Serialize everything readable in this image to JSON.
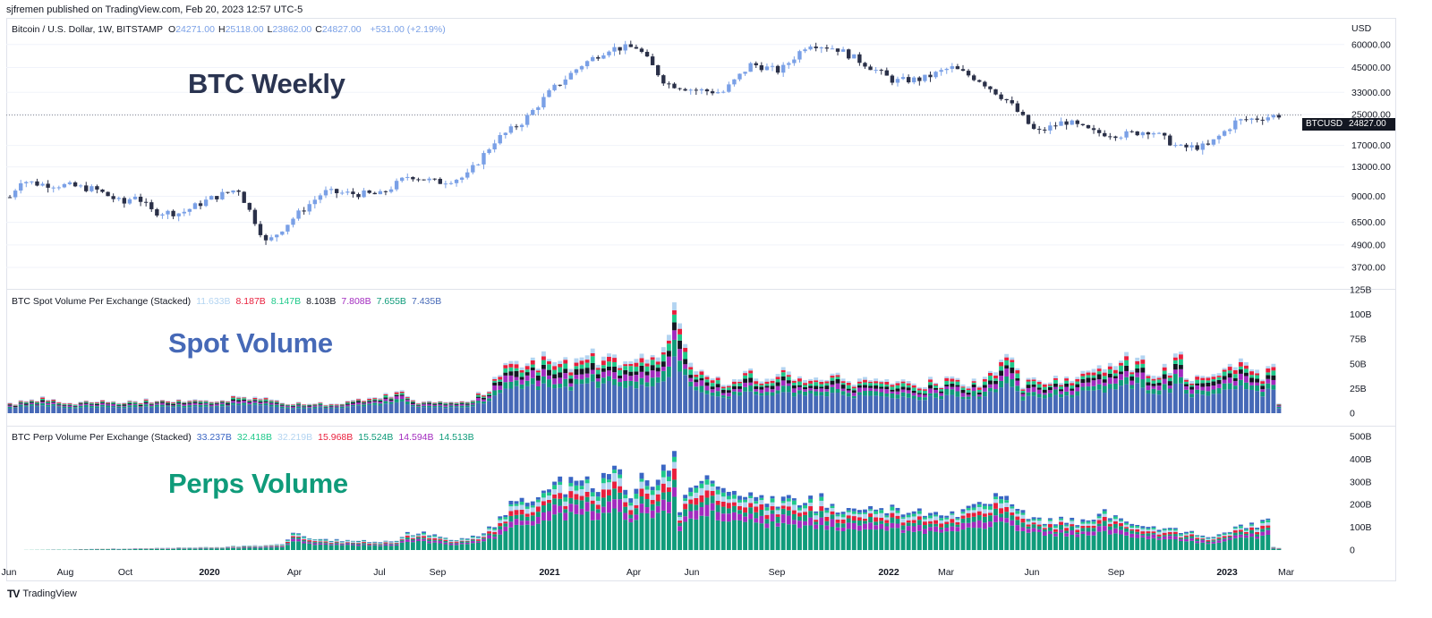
{
  "header": {
    "published": "sjfremen published on TradingView.com, Feb 20, 2023 12:57 UTC-5"
  },
  "price_pane": {
    "symbol": "Bitcoin / U.S. Dollar, 1W, BITSTAMP",
    "ohlc": [
      {
        "k": "O",
        "v": "24271.00"
      },
      {
        "k": "H",
        "v": "25118.00"
      },
      {
        "k": "L",
        "v": "23862.00"
      },
      {
        "k": "C",
        "v": "24827.00"
      }
    ],
    "change": "+531.00 (+2.19%)",
    "currency": "USD",
    "overlay_title": "BTC Weekly",
    "last_label_symbol": "BTCUSD",
    "last_label_value": "24827.00",
    "y_ticks": [
      "60000.00",
      "45000.00",
      "33000.00",
      "25000.00",
      "17000.00",
      "13000.00",
      "9000.00",
      "6500.00",
      "4900.00",
      "3700.00"
    ]
  },
  "spot_pane": {
    "title": "BTC Spot Volume Per Exchange (Stacked)",
    "values": [
      {
        "v": "11.633B",
        "color": "#b3d4f1"
      },
      {
        "v": "8.187B",
        "color": "#e91e3c"
      },
      {
        "v": "8.147B",
        "color": "#1ec98a"
      },
      {
        "v": "8.103B",
        "color": "#131722"
      },
      {
        "v": "7.808B",
        "color": "#a22bbf"
      },
      {
        "v": "7.655B",
        "color": "#0f9b7a"
      },
      {
        "v": "7.435B",
        "color": "#4669b7"
      }
    ],
    "overlay_title": "Spot Volume",
    "y_ticks": [
      "125B",
      "100B",
      "75B",
      "50B",
      "25B",
      "0"
    ]
  },
  "perp_pane": {
    "title": "BTC Perp Volume Per Exchange (Stacked)",
    "values": [
      {
        "v": "33.237B",
        "color": "#3a66c4"
      },
      {
        "v": "32.418B",
        "color": "#1ec98a"
      },
      {
        "v": "32.219B",
        "color": "#b3d4f1"
      },
      {
        "v": "15.968B",
        "color": "#e91e3c"
      },
      {
        "v": "15.524B",
        "color": "#0f9b7a"
      },
      {
        "v": "14.594B",
        "color": "#a22bbf"
      },
      {
        "v": "14.513B",
        "color": "#0f9b7a"
      }
    ],
    "overlay_title": "Perps Volume",
    "y_ticks": [
      "500B",
      "400B",
      "300B",
      "200B",
      "100B",
      "0"
    ]
  },
  "x_axis": {
    "labels": [
      {
        "t": "Jun",
        "bold": false
      },
      {
        "t": "Aug",
        "bold": false
      },
      {
        "t": "Oct",
        "bold": false
      },
      {
        "t": "2020",
        "bold": true
      },
      {
        "t": "Apr",
        "bold": false
      },
      {
        "t": "Jul",
        "bold": false
      },
      {
        "t": "Sep",
        "bold": false
      },
      {
        "t": "2021",
        "bold": true
      },
      {
        "t": "Apr",
        "bold": false
      },
      {
        "t": "Jun",
        "bold": false
      },
      {
        "t": "Sep",
        "bold": false
      },
      {
        "t": "2022",
        "bold": true
      },
      {
        "t": "Mar",
        "bold": false
      },
      {
        "t": "Jun",
        "bold": false
      },
      {
        "t": "Sep",
        "bold": false
      },
      {
        "t": "2023",
        "bold": true
      },
      {
        "t": "Mar",
        "bold": false
      }
    ]
  },
  "footer": {
    "brand": "TradingView"
  },
  "colors": {
    "up": "#7aa0e6",
    "down": "#2a3048",
    "spot_title": "#4669b7",
    "perp_title": "#0f9b7a",
    "price_title": "#2a3451",
    "spot_stack": [
      "#4669b7",
      "#0f9b7a",
      "#a22bbf",
      "#131722",
      "#1ec98a",
      "#e91e3c",
      "#b3d4f1"
    ],
    "perp_stack": [
      "#0f9b7a",
      "#a22bbf",
      "#0f9b7a",
      "#e91e3c",
      "#b3d4f1",
      "#1ec98a",
      "#3a66c4"
    ]
  },
  "chart_data": [
    {
      "type": "candlestick",
      "title": "Bitcoin / U.S. Dollar, 1W, BITSTAMP",
      "scale": "log",
      "x_range": [
        "2019-06",
        "2023-02"
      ],
      "ylim": [
        3200,
        70000
      ],
      "close_path": [
        [
          "2019-06",
          8900
        ],
        [
          "2019-06",
          11000
        ],
        [
          "2019-07",
          10500
        ],
        [
          "2019-08",
          10300
        ],
        [
          "2019-09",
          9800
        ],
        [
          "2019-10",
          8200
        ],
        [
          "2019-10",
          9200
        ],
        [
          "2019-11",
          7400
        ],
        [
          "2019-12",
          7300
        ],
        [
          "2020-01",
          8700
        ],
        [
          "2020-02",
          9900
        ],
        [
          "2020-03",
          5000
        ],
        [
          "2020-04",
          7000
        ],
        [
          "2020-05",
          9500
        ],
        [
          "2020-06",
          9300
        ],
        [
          "2020-07",
          9200
        ],
        [
          "2020-08",
          11700
        ],
        [
          "2020-09",
          10700
        ],
        [
          "2020-10",
          11500
        ],
        [
          "2020-11",
          18000
        ],
        [
          "2020-12",
          23000
        ],
        [
          "2021-01",
          34000
        ],
        [
          "2021-02",
          46000
        ],
        [
          "2021-03",
          57000
        ],
        [
          "2021-04",
          58000
        ],
        [
          "2021-05",
          37000
        ],
        [
          "2021-06",
          34000
        ],
        [
          "2021-07",
          33000
        ],
        [
          "2021-08",
          47000
        ],
        [
          "2021-09",
          43000
        ],
        [
          "2021-10",
          61000
        ],
        [
          "2021-11",
          57000
        ],
        [
          "2021-12",
          47000
        ],
        [
          "2022-01",
          38000
        ],
        [
          "2022-02",
          39000
        ],
        [
          "2022-03",
          45000
        ],
        [
          "2022-04",
          38500
        ],
        [
          "2022-05",
          29500
        ],
        [
          "2022-06",
          19900
        ],
        [
          "2022-07",
          23000
        ],
        [
          "2022-08",
          20000
        ],
        [
          "2022-09",
          19400
        ],
        [
          "2022-10",
          20500
        ],
        [
          "2022-11",
          16500
        ],
        [
          "2022-12",
          16800
        ],
        [
          "2023-01",
          23000
        ],
        [
          "2023-02",
          24827
        ]
      ]
    },
    {
      "type": "bar",
      "stacked": true,
      "title": "BTC Spot Volume Per Exchange (Stacked)",
      "unit": "B",
      "ylim": [
        0,
        125
      ],
      "anchors": [
        [
          0,
          10
        ],
        [
          6,
          16
        ],
        [
          10,
          11
        ],
        [
          20,
          12
        ],
        [
          40,
          14
        ],
        [
          44,
          17
        ],
        [
          52,
          10
        ],
        [
          60,
          11
        ],
        [
          72,
          21
        ],
        [
          75,
          12
        ],
        [
          84,
          12
        ],
        [
          88,
          24
        ],
        [
          92,
          56
        ],
        [
          100,
          52
        ],
        [
          110,
          58
        ],
        [
          114,
          48
        ],
        [
          121,
          70
        ],
        [
          122,
          115
        ],
        [
          125,
          48
        ],
        [
          130,
          30
        ],
        [
          136,
          40
        ],
        [
          150,
          38
        ],
        [
          155,
          34
        ],
        [
          168,
          30
        ],
        [
          174,
          34
        ],
        [
          178,
          29
        ],
        [
          183,
          64
        ],
        [
          186,
          30
        ],
        [
          193,
          33
        ],
        [
          201,
          48
        ],
        [
          207,
          54
        ],
        [
          211,
          36
        ],
        [
          215,
          60
        ],
        [
          216,
          36
        ],
        [
          221,
          35
        ],
        [
          225,
          53
        ],
        [
          230,
          38
        ],
        [
          232,
          49
        ],
        [
          233,
          9
        ]
      ]
    },
    {
      "type": "bar",
      "stacked": true,
      "title": "BTC Perp Volume Per Exchange (Stacked)",
      "unit": "B",
      "ylim": [
        0,
        500
      ],
      "anchors": [
        [
          0,
          0
        ],
        [
          16,
          5
        ],
        [
          25,
          8
        ],
        [
          40,
          14
        ],
        [
          50,
          25
        ],
        [
          52,
          75
        ],
        [
          56,
          50
        ],
        [
          70,
          35
        ],
        [
          74,
          80
        ],
        [
          82,
          40
        ],
        [
          88,
          90
        ],
        [
          94,
          225
        ],
        [
          100,
          300
        ],
        [
          105,
          290
        ],
        [
          111,
          330
        ],
        [
          114,
          270
        ],
        [
          121,
          320
        ],
        [
          122,
          480
        ],
        [
          123,
          190
        ],
        [
          128,
          330
        ],
        [
          133,
          260
        ],
        [
          140,
          220
        ],
        [
          148,
          200
        ],
        [
          156,
          190
        ],
        [
          162,
          170
        ],
        [
          167,
          165
        ],
        [
          170,
          160
        ],
        [
          173,
          145
        ],
        [
          183,
          260
        ],
        [
          186,
          150
        ],
        [
          195,
          130
        ],
        [
          201,
          150
        ],
        [
          211,
          100
        ],
        [
          215,
          90
        ],
        [
          220,
          60
        ],
        [
          222,
          70
        ],
        [
          225,
          110
        ],
        [
          229,
          110
        ],
        [
          231,
          140
        ],
        [
          232,
          15
        ],
        [
          233,
          10
        ]
      ]
    }
  ]
}
